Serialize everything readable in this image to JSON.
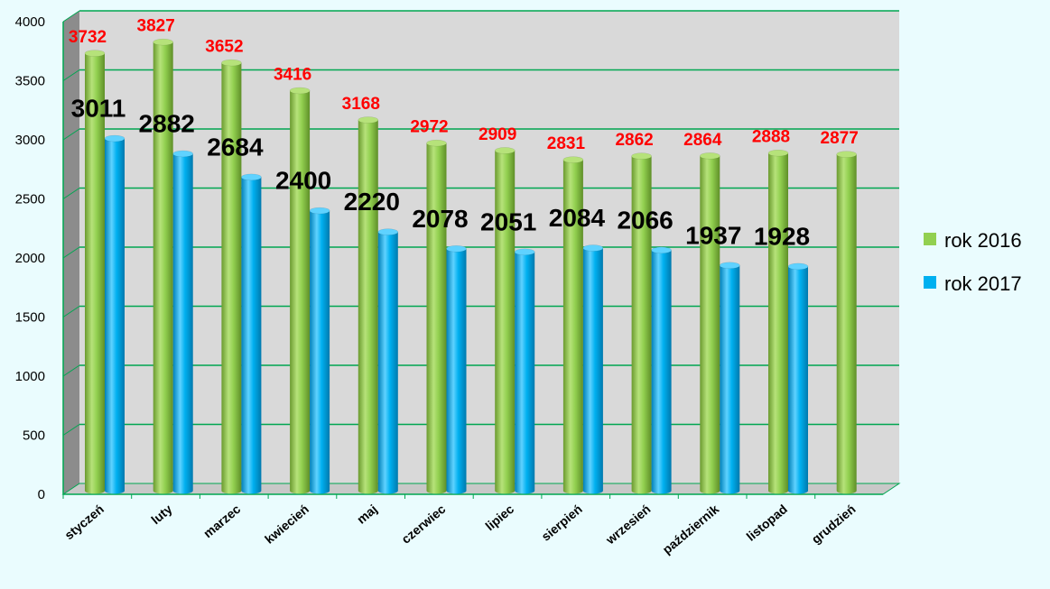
{
  "chart_data": {
    "type": "bar",
    "title": "",
    "xlabel": "",
    "ylabel": "",
    "ylim": [
      0,
      4000
    ],
    "yticks": [
      0,
      500,
      1000,
      1500,
      2000,
      2500,
      3000,
      3500,
      4000
    ],
    "grid": true,
    "legend_position": "right",
    "categories": [
      "styczeń",
      "luty",
      "marzec",
      "kwiecień",
      "maj",
      "czerwiec",
      "lipiec",
      "sierpień",
      "wrzesień",
      "październik",
      "listopad",
      "grudzień"
    ],
    "series": [
      {
        "name": "rok 2016",
        "color": "#92d050",
        "label_color": "#ff0000",
        "values": [
          3732,
          3827,
          3652,
          3416,
          3168,
          2972,
          2909,
          2831,
          2862,
          2864,
          2888,
          2877
        ]
      },
      {
        "name": "rok 2017",
        "color": "#00b0f0",
        "label_color": "#000000",
        "values": [
          3011,
          2882,
          2684,
          2400,
          2220,
          2078,
          2051,
          2084,
          2066,
          1937,
          1928,
          null
        ]
      }
    ]
  },
  "colors": {
    "background": "#eafcfe",
    "plot_wall": "#d9d9d9",
    "side_wall": "#8c8c8c",
    "gridline": "#00a651"
  }
}
